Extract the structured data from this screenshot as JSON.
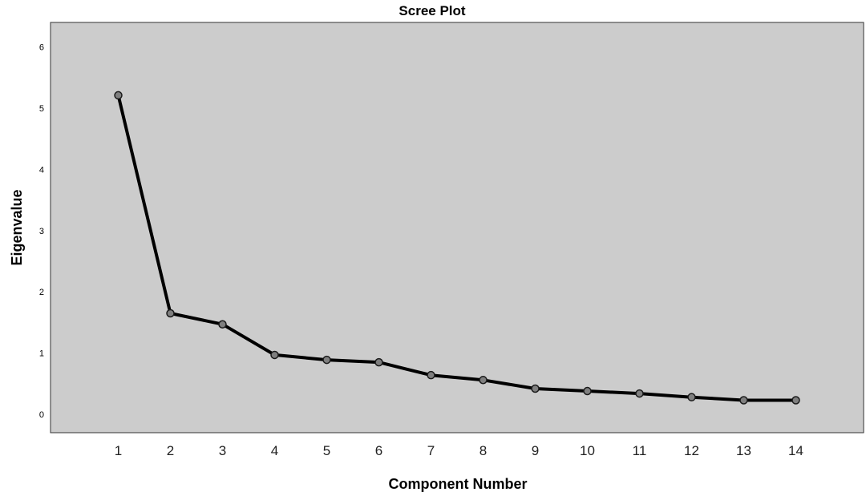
{
  "chart_data": {
    "type": "line",
    "title": "Scree Plot",
    "xlabel": "Component Number",
    "ylabel": "Eigenvalue",
    "x": [
      1,
      2,
      3,
      4,
      5,
      6,
      7,
      8,
      9,
      10,
      11,
      12,
      13,
      14
    ],
    "x_tick_labels": [
      "1",
      "2",
      "3",
      "4",
      "5",
      "6",
      "7",
      "8",
      "9",
      "10",
      "11",
      "12",
      "13",
      "14"
    ],
    "y_tick_labels": [
      "0",
      "1",
      "2",
      "3",
      "4",
      "5",
      "6"
    ],
    "values": [
      5.21,
      1.65,
      1.47,
      0.97,
      0.89,
      0.85,
      0.64,
      0.56,
      0.42,
      0.38,
      0.34,
      0.28,
      0.23,
      0.23
    ],
    "xlim": [
      -0.3,
      15.3
    ],
    "ylim": [
      -0.3,
      6.4
    ],
    "grid": false,
    "legend": "none",
    "colors": {
      "plot_background": "#cccccc",
      "line": "#000000",
      "marker_fill": "#7f7f7f",
      "marker_stroke": "#1a1a1a"
    }
  }
}
